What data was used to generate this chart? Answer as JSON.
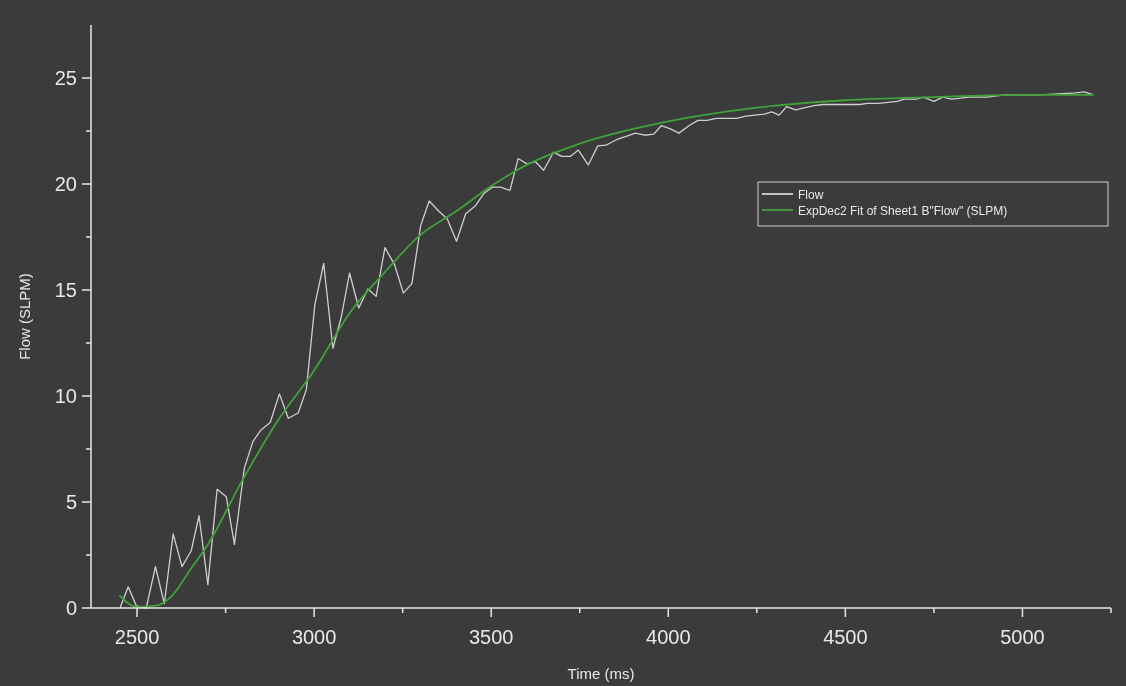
{
  "chart_data": {
    "type": "line",
    "xlabel": "Time (ms)",
    "ylabel": "Flow (SLPM)",
    "xlim": [
      2370,
      5250
    ],
    "ylim": [
      0,
      27.5
    ],
    "xticks": [
      2500,
      {
        "value": 2750,
        "label": null
      },
      3000,
      {
        "value": 3250,
        "label": null
      },
      3500,
      {
        "value": 3750,
        "label": null
      },
      4000,
      {
        "value": 4250,
        "label": null
      },
      4500,
      {
        "value": 4750,
        "label": null
      },
      5000,
      {
        "value": 5250,
        "label": null
      }
    ],
    "yticks": [
      0,
      {
        "value": 2.5,
        "label": null
      },
      5,
      {
        "value": 7.5,
        "label": null
      },
      10,
      {
        "value": 12.5,
        "label": null
      },
      15,
      {
        "value": 17.5,
        "label": null
      },
      20,
      {
        "value": 22.5,
        "label": null
      },
      25
    ],
    "grid": false,
    "legend": "right",
    "line_style": "solid",
    "marker": "none",
    "series": [
      {
        "name": "Flow",
        "color": "#cfcfcf",
        "x": [
          2452,
          2475,
          2498,
          2526,
          2552,
          2577,
          2602,
          2627,
          2653,
          2675,
          2700,
          2726,
          2752,
          2775,
          2803,
          2827,
          2850,
          2876,
          2902,
          2927,
          2955,
          2978,
          3002,
          3027,
          3053,
          3077,
          3100,
          3126,
          3152,
          3175,
          3200,
          3227,
          3252,
          3276,
          3301,
          3325,
          3353,
          3376,
          3402,
          3428,
          3454,
          3479,
          3503,
          3526,
          3553,
          3576,
          3601,
          3625,
          3648,
          3676,
          3699,
          3723,
          3746,
          3774,
          3801,
          3824,
          3855,
          3881,
          3907,
          3933,
          3959,
          3980,
          4006,
          4030,
          4058,
          4084,
          4110,
          4136,
          4167,
          4193,
          4219,
          4245,
          4271,
          4292,
          4313,
          4334,
          4360,
          4386,
          4411,
          4438,
          4464,
          4490,
          4516,
          4541,
          4562,
          4594,
          4620,
          4646,
          4667,
          4700,
          4720,
          4750,
          4775,
          4800,
          4850,
          4900,
          4950,
          5000,
          5050,
          5100,
          5150,
          5175,
          5200
        ],
        "values": [
          0,
          1.0,
          0.1,
          0,
          1.95,
          0.2,
          3.5,
          1.95,
          2.7,
          4.35,
          1.1,
          5.6,
          5.25,
          3.0,
          6.6,
          7.85,
          8.4,
          8.75,
          10.1,
          8.95,
          9.2,
          10.3,
          14.3,
          16.25,
          12.25,
          13.75,
          15.8,
          14.15,
          15.05,
          14.7,
          17.0,
          16.2,
          14.85,
          15.3,
          18.05,
          19.2,
          18.7,
          18.35,
          17.3,
          18.6,
          18.95,
          19.55,
          19.85,
          19.85,
          19.7,
          21.2,
          20.95,
          21.05,
          20.65,
          21.5,
          21.3,
          21.3,
          21.6,
          20.9,
          21.8,
          21.83,
          22.1,
          22.25,
          22.4,
          22.3,
          22.35,
          22.75,
          22.6,
          22.4,
          22.75,
          23.0,
          23.0,
          23.1,
          23.1,
          23.1,
          23.2,
          23.25,
          23.3,
          23.4,
          23.25,
          23.65,
          23.5,
          23.6,
          23.7,
          23.75,
          23.75,
          23.75,
          23.75,
          23.75,
          23.8,
          23.8,
          23.85,
          23.9,
          24.0,
          24.0,
          24.1,
          23.9,
          24.1,
          24.0,
          24.1,
          24.1,
          24.2,
          24.2,
          24.2,
          24.25,
          24.3,
          24.35,
          24.2
        ]
      },
      {
        "name": "ExpDec2 Fit of Sheet1 B\"Flow\" (SLPM)",
        "color": "#3fa33a",
        "x": [
          2450,
          2500,
          2550,
          2600,
          2650,
          2700,
          2800,
          2900,
          3000,
          3100,
          3200,
          3300,
          3400,
          3500,
          3600,
          3750,
          4000,
          4250,
          4500,
          4750,
          5000,
          5200
        ],
        "values": [
          0.6,
          0.05,
          0.1,
          0.6,
          1.8,
          3.0,
          6.1,
          8.9,
          11.2,
          13.9,
          15.85,
          17.6,
          18.7,
          19.9,
          20.9,
          21.9,
          22.95,
          23.6,
          23.95,
          24.1,
          24.2,
          24.2
        ]
      }
    ]
  }
}
